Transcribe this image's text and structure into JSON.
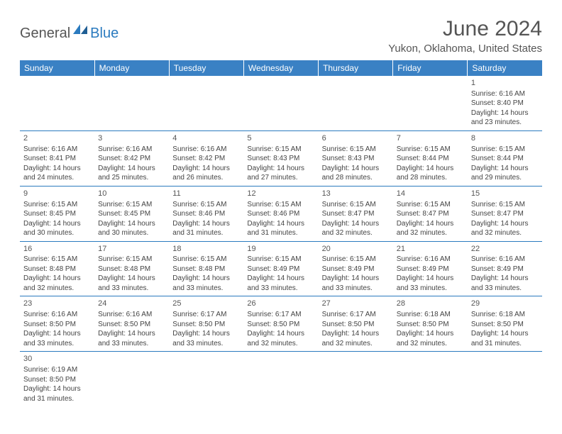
{
  "logo": {
    "part1": "General",
    "part2": "Blue"
  },
  "title": "June 2024",
  "location": "Yukon, Oklahoma, United States",
  "colors": {
    "header_bg": "#3a81c4",
    "header_text": "#ffffff",
    "border": "#2b7bbf",
    "title_color": "#555555",
    "body_text": "#444444",
    "logo_gray": "#555555",
    "logo_blue": "#2b7bbf"
  },
  "weekdays": [
    "Sunday",
    "Monday",
    "Tuesday",
    "Wednesday",
    "Thursday",
    "Friday",
    "Saturday"
  ],
  "weeks": [
    [
      null,
      null,
      null,
      null,
      null,
      null,
      {
        "d": "1",
        "sr": "6:16 AM",
        "ss": "8:40 PM",
        "dl": "14 hours and 23 minutes."
      }
    ],
    [
      {
        "d": "2",
        "sr": "6:16 AM",
        "ss": "8:41 PM",
        "dl": "14 hours and 24 minutes."
      },
      {
        "d": "3",
        "sr": "6:16 AM",
        "ss": "8:42 PM",
        "dl": "14 hours and 25 minutes."
      },
      {
        "d": "4",
        "sr": "6:16 AM",
        "ss": "8:42 PM",
        "dl": "14 hours and 26 minutes."
      },
      {
        "d": "5",
        "sr": "6:15 AM",
        "ss": "8:43 PM",
        "dl": "14 hours and 27 minutes."
      },
      {
        "d": "6",
        "sr": "6:15 AM",
        "ss": "8:43 PM",
        "dl": "14 hours and 28 minutes."
      },
      {
        "d": "7",
        "sr": "6:15 AM",
        "ss": "8:44 PM",
        "dl": "14 hours and 28 minutes."
      },
      {
        "d": "8",
        "sr": "6:15 AM",
        "ss": "8:44 PM",
        "dl": "14 hours and 29 minutes."
      }
    ],
    [
      {
        "d": "9",
        "sr": "6:15 AM",
        "ss": "8:45 PM",
        "dl": "14 hours and 30 minutes."
      },
      {
        "d": "10",
        "sr": "6:15 AM",
        "ss": "8:45 PM",
        "dl": "14 hours and 30 minutes."
      },
      {
        "d": "11",
        "sr": "6:15 AM",
        "ss": "8:46 PM",
        "dl": "14 hours and 31 minutes."
      },
      {
        "d": "12",
        "sr": "6:15 AM",
        "ss": "8:46 PM",
        "dl": "14 hours and 31 minutes."
      },
      {
        "d": "13",
        "sr": "6:15 AM",
        "ss": "8:47 PM",
        "dl": "14 hours and 32 minutes."
      },
      {
        "d": "14",
        "sr": "6:15 AM",
        "ss": "8:47 PM",
        "dl": "14 hours and 32 minutes."
      },
      {
        "d": "15",
        "sr": "6:15 AM",
        "ss": "8:47 PM",
        "dl": "14 hours and 32 minutes."
      }
    ],
    [
      {
        "d": "16",
        "sr": "6:15 AM",
        "ss": "8:48 PM",
        "dl": "14 hours and 32 minutes."
      },
      {
        "d": "17",
        "sr": "6:15 AM",
        "ss": "8:48 PM",
        "dl": "14 hours and 33 minutes."
      },
      {
        "d": "18",
        "sr": "6:15 AM",
        "ss": "8:48 PM",
        "dl": "14 hours and 33 minutes."
      },
      {
        "d": "19",
        "sr": "6:15 AM",
        "ss": "8:49 PM",
        "dl": "14 hours and 33 minutes."
      },
      {
        "d": "20",
        "sr": "6:15 AM",
        "ss": "8:49 PM",
        "dl": "14 hours and 33 minutes."
      },
      {
        "d": "21",
        "sr": "6:16 AM",
        "ss": "8:49 PM",
        "dl": "14 hours and 33 minutes."
      },
      {
        "d": "22",
        "sr": "6:16 AM",
        "ss": "8:49 PM",
        "dl": "14 hours and 33 minutes."
      }
    ],
    [
      {
        "d": "23",
        "sr": "6:16 AM",
        "ss": "8:50 PM",
        "dl": "14 hours and 33 minutes."
      },
      {
        "d": "24",
        "sr": "6:16 AM",
        "ss": "8:50 PM",
        "dl": "14 hours and 33 minutes."
      },
      {
        "d": "25",
        "sr": "6:17 AM",
        "ss": "8:50 PM",
        "dl": "14 hours and 33 minutes."
      },
      {
        "d": "26",
        "sr": "6:17 AM",
        "ss": "8:50 PM",
        "dl": "14 hours and 32 minutes."
      },
      {
        "d": "27",
        "sr": "6:17 AM",
        "ss": "8:50 PM",
        "dl": "14 hours and 32 minutes."
      },
      {
        "d": "28",
        "sr": "6:18 AM",
        "ss": "8:50 PM",
        "dl": "14 hours and 32 minutes."
      },
      {
        "d": "29",
        "sr": "6:18 AM",
        "ss": "8:50 PM",
        "dl": "14 hours and 31 minutes."
      }
    ],
    [
      {
        "d": "30",
        "sr": "6:19 AM",
        "ss": "8:50 PM",
        "dl": "14 hours and 31 minutes."
      },
      null,
      null,
      null,
      null,
      null,
      null
    ]
  ],
  "labels": {
    "sunrise_prefix": "Sunrise: ",
    "sunset_prefix": "Sunset: ",
    "daylight_prefix": "Daylight: "
  }
}
